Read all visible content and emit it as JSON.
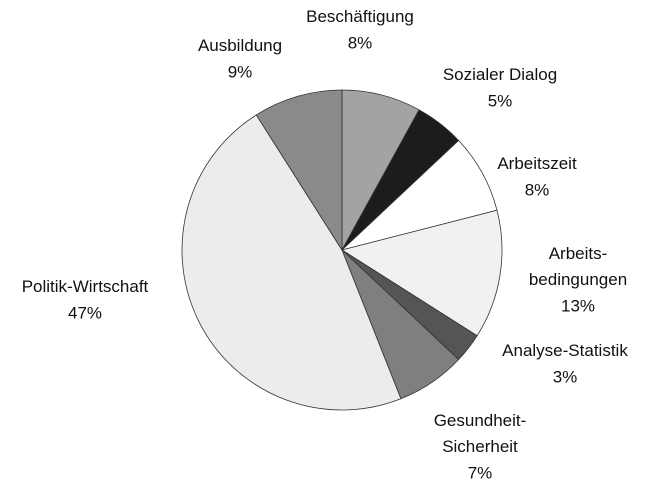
{
  "chart_data": {
    "type": "pie",
    "categories": [
      "Beschäftigung",
      "Sozialer Dialog",
      "Arbeitszeit",
      "Arbeits-\nbedingungen",
      "Analyse-Statistik",
      "Gesundheit-\nSicherheit",
      "Politik-Wirtschaft",
      "Ausbildung"
    ],
    "values": [
      8,
      5,
      8,
      13,
      3,
      7,
      47,
      9
    ],
    "value_labels": [
      "8%",
      "5%",
      "8%",
      "13%",
      "3%",
      "7%",
      "47%",
      "9%"
    ],
    "colors": [
      "#a3a3a3",
      "#1c1c1c",
      "#ffffff",
      "#f1f1f1",
      "#555555",
      "#7f7f7f",
      "#ececec",
      "#8a8a8a"
    ]
  }
}
